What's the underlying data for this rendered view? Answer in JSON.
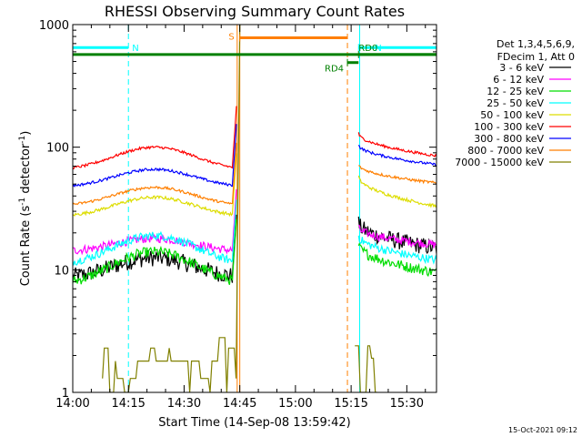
{
  "chart_data": {
    "type": "line",
    "title": "RHESSI Observing Summary Count Rates",
    "xlabel": "Start Time (14-Sep-08 13:59:42)",
    "ylabel": "Count Rate (s⁻¹ detector⁻¹)",
    "ylabel_main": "Count Rate (s",
    "ylabel_sup1": "-1",
    "ylabel_mid": " detector",
    "ylabel_sup2": "-1",
    "ylabel_end": ")",
    "yscale": "log",
    "ylim": [
      1,
      1000
    ],
    "xlim_minutes": [
      0,
      98
    ],
    "x_ticks": [
      {
        "min": 0,
        "label": "14:00"
      },
      {
        "min": 15,
        "label": "14:15"
      },
      {
        "min": 30,
        "label": "14:30"
      },
      {
        "min": 45,
        "label": "14:45"
      },
      {
        "min": 60,
        "label": "15:00"
      },
      {
        "min": 75,
        "label": "15:15"
      },
      {
        "min": 90,
        "label": "15:30"
      }
    ],
    "y_ticks": [
      {
        "value": 1,
        "label": "1"
      },
      {
        "value": 10,
        "label": "10"
      },
      {
        "value": 100,
        "label": "100"
      },
      {
        "value": 1000,
        "label": "1000"
      }
    ],
    "legend_header": [
      "Det 1,3,4,5,6,9,",
      "FDecim 1, Att 0"
    ],
    "series": [
      {
        "name": "3 - 6 keV",
        "color": "#000000",
        "peak": 12.5,
        "base": 8.5,
        "post_start": 24,
        "post_end": 15,
        "noise": 0.16
      },
      {
        "name": "6 - 12 keV",
        "color": "#ff00ff",
        "peak": 18.0,
        "base": 14.0,
        "post_start": 22,
        "post_end": 16,
        "noise": 0.08
      },
      {
        "name": "12 - 25 keV",
        "color": "#00dd00",
        "peak": 14.0,
        "base": 7.5,
        "post_start": 16,
        "post_end": 9.5,
        "noise": 0.1
      },
      {
        "name": "25 - 50 keV",
        "color": "#00ffff",
        "peak": 19.0,
        "base": 11.0,
        "post_start": 19,
        "post_end": 12,
        "noise": 0.08
      },
      {
        "name": "50 - 100 keV",
        "color": "#dddd00",
        "peak": 39.0,
        "base": 27.0,
        "post_start": 58,
        "post_end": 33,
        "noise": 0.03
      },
      {
        "name": "100 - 300 keV",
        "color": "#ff0000",
        "peak": 100.0,
        "base": 65.0,
        "post_start": 130,
        "post_end": 85,
        "noise": 0.025
      },
      {
        "name": "300 - 800 keV",
        "color": "#0000ff",
        "peak": 66.0,
        "base": 47.0,
        "post_start": 105,
        "post_end": 72,
        "noise": 0.025
      },
      {
        "name": "800 - 7000 keV",
        "color": "#ff7f00",
        "peak": 47.0,
        "base": 33.0,
        "post_start": 72,
        "post_end": 51,
        "noise": 0.025
      },
      {
        "name": "7000 - 15000 keV",
        "color": "#808000",
        "peak": 2.8,
        "base": 1.5,
        "post_start": 2.5,
        "post_end": 1.0,
        "noise": 0.3
      }
    ],
    "annotations": [
      {
        "label": "N",
        "color": "#00ffff",
        "x_start": 0,
        "x_end": 15,
        "level": 650
      },
      {
        "label": "N",
        "color": "#00ffff",
        "x_start": 77,
        "x_end": 98,
        "level": 650
      },
      {
        "label": "S",
        "color": "#ff7f00",
        "x_start": 45,
        "x_end": 74,
        "level": 780
      },
      {
        "label": "RD4",
        "color": "#008000",
        "x_start": 74,
        "x_end": 77,
        "level": 490
      },
      {
        "label": "RD0",
        "color": "#008000",
        "x_start": 77,
        "x_end": 98,
        "level": 570
      }
    ],
    "vertical_markers_min": [
      {
        "min": 0,
        "color": "#00ffff",
        "style": "solid"
      },
      {
        "min": 15,
        "color": "#00ffff",
        "style": "dashed"
      },
      {
        "min": 44.3,
        "color": "#ff7f00",
        "style": "solid"
      },
      {
        "min": 45,
        "color": "#ff7f00",
        "style": "solid"
      },
      {
        "min": 74,
        "color": "#ff7f00",
        "style": "dashed"
      },
      {
        "min": 77.3,
        "color": "#00ffff",
        "style": "solid"
      },
      {
        "min": 98,
        "color": "#00ffff",
        "style": "dashed"
      }
    ],
    "green_baseline_level": 570,
    "timestamp": "15-Oct-2021 09:12"
  }
}
